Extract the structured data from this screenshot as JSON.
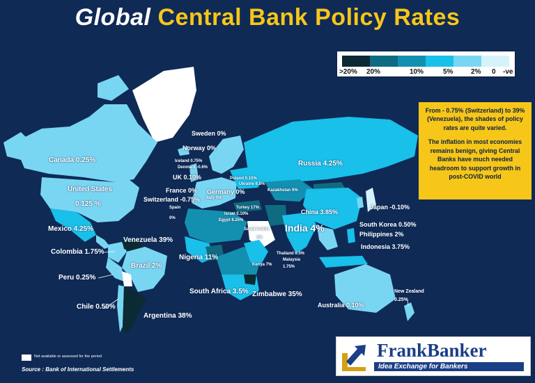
{
  "title": {
    "first": "Global",
    "rest": "Central Bank Policy Rates"
  },
  "legend": {
    "colors": [
      "#0b2a33",
      "#0f6b82",
      "#1390b0",
      "#18c0ea",
      "#79d6f2",
      "#d6f3fb"
    ],
    "labels": [
      ">20%",
      "20%",
      "10%",
      "5%",
      "2%",
      "0",
      "-ve"
    ]
  },
  "note": {
    "p1": "From - 0.75% (Switzerland) to 39% (Venezuela), the shades of policy rates are quite varied.",
    "p2": "The inflation in most economies remains benign, giving Central Banks have much needed headroom to support growth in post-COVID world"
  },
  "countries": {
    "canada": "Canada  0.25%",
    "us1": "United States",
    "us2": "0.125 %",
    "mexico": "Mexico 4.25%",
    "venezuela": "Venezuela 39%",
    "colombia": "Colombia 1.75%",
    "brazil": "Brazil 2%",
    "peru": "Peru 0.25%",
    "chile": "Chile 0.50%",
    "argentina": "Argentina 38%",
    "sweden": "Sweden 0%",
    "norway": "Norway 0%",
    "iceland": "Iceland 0.75%",
    "denmark": "Denmark -0.6%",
    "uk": "UK 0.10%",
    "france": "France 0%",
    "germany": "Germany 0%",
    "switzerland": "Switzerland -0.75%",
    "italy": "Italy 0%",
    "spain1": "Spain",
    "spain2": "0%",
    "poland": "Poland  0.10%",
    "ukraine": "Ukraine 6.5%",
    "russia": "Russia 4.25%",
    "kazakhstan": "Kazakhstan 9%",
    "turkey": "Turkey 17%",
    "israel": "Israel  0.10%",
    "egypt": "Egypt 8.25%",
    "saudi1": "Saudi Arabia",
    "saudi2": "1%",
    "india": "India 4%",
    "china": "China 3.85%",
    "japan": "Japan -0.10%",
    "korea": "South Korea 0.50%",
    "philippines": "Philippines 2%",
    "thailand": "Thailand 0.5%",
    "malaysia1": "Malaysia",
    "malaysia2": "1.75%",
    "indonesia": "Indonesia 3.75%",
    "nigeria": "Nigeria 11%",
    "kenya": "Kenya 7%",
    "southafrica": "South Africa 3.5%",
    "zimbabwe": "Zimbabwe  35%",
    "australia": "Australia 0.10%",
    "newzealand1": "New Zealand",
    "newzealand2": "0.25%"
  },
  "logo": {
    "brand": "FrankBanker",
    "tagline": "Idea Exchange for Bankers"
  },
  "footer": {
    "na": "Not available or assessed for the period",
    "source": "Source : Bank of International Settlements"
  }
}
